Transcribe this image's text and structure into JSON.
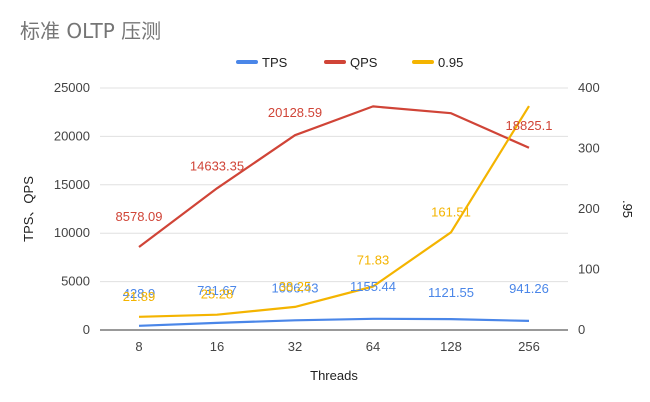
{
  "chart_data": {
    "type": "line",
    "title": "标准 OLTP 压测",
    "xlabel": "Threads",
    "ylabel_left": "TPS、QPS",
    "ylabel_right": ".95",
    "categories": [
      "8",
      "16",
      "32",
      "64",
      "128",
      "256"
    ],
    "left_axis": {
      "ylim": [
        0,
        25000
      ],
      "ticks": [
        0,
        5000,
        10000,
        15000,
        20000,
        25000
      ]
    },
    "right_axis": {
      "ylim": [
        0,
        400
      ],
      "ticks": [
        0,
        100,
        200,
        300,
        400
      ]
    },
    "legend_position": "top",
    "grid": true,
    "series": [
      {
        "name": "TPS",
        "axis": "left",
        "color": "#4a86e8",
        "values": [
          428.9,
          731.67,
          1006.43,
          1155.44,
          1121.55,
          941.26
        ],
        "labels": [
          "428.9",
          "731.67",
          "1006.43",
          "1155.44",
          "1121.55",
          "941.26"
        ]
      },
      {
        "name": "QPS",
        "axis": "left",
        "color": "#d04437",
        "values": [
          8578.09,
          14633.35,
          20128.59,
          23100,
          22400,
          18825.1
        ],
        "labels": [
          "8578.09",
          "14633.35",
          "20128.59",
          "",
          "",
          "18825.1"
        ]
      },
      {
        "name": "0.95",
        "axis": "right",
        "color": "#f4b400",
        "values": [
          21.89,
          25.28,
          38.25,
          71.83,
          161.51,
          370
        ],
        "labels": [
          "21.89",
          "25.28",
          "38.25",
          "71.83",
          "161.51",
          ""
        ]
      }
    ]
  }
}
